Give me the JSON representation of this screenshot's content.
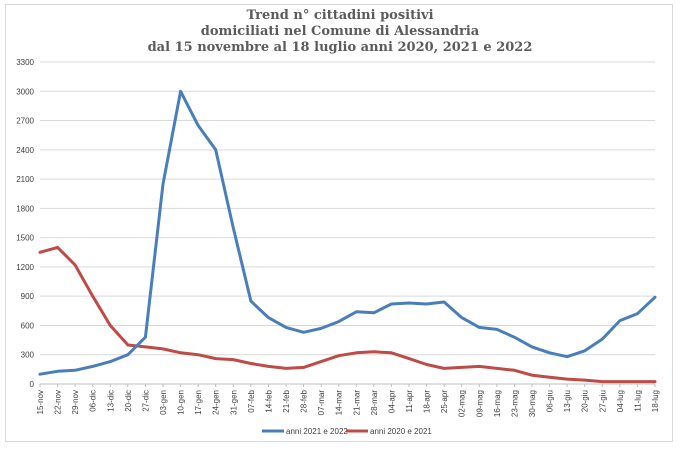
{
  "chart_data": {
    "type": "line",
    "title_lines": [
      "Trend n° cittadini positivi",
      "domiciliati nel Comune di Alessandria",
      "dal 15 novembre al 18 luglio anni 2020, 2021 e 2022"
    ],
    "xlabel": "",
    "ylabel": "",
    "ylim": [
      0,
      3300
    ],
    "yticks": [
      0,
      300,
      600,
      900,
      1200,
      1500,
      1800,
      2100,
      2400,
      2700,
      3000,
      3300
    ],
    "grid": true,
    "legend_position": "bottom",
    "categories": [
      "15-nov",
      "22-nov",
      "29-nov",
      "06-dic",
      "13-dic",
      "20-dic",
      "27-dic",
      "03-gen",
      "10-gen",
      "17-gen",
      "24-gen",
      "31-gen",
      "07-feb",
      "14-feb",
      "21-feb",
      "28-feb",
      "07-mar",
      "14-mar",
      "21-mar",
      "28-mar",
      "04-apr",
      "11-apr",
      "18-apr",
      "25-apr",
      "02-mag",
      "09-mag",
      "16-mag",
      "23-mag",
      "30-mag",
      "06-giu",
      "13-giu",
      "20-giu",
      "27-giu",
      "04-lug",
      "11-lug",
      "18-lug"
    ],
    "series": [
      {
        "name": "anni 2021 e 2022",
        "color": "#4a7ebb",
        "values": [
          100,
          130,
          140,
          180,
          230,
          300,
          480,
          2050,
          3000,
          2650,
          2400,
          1600,
          850,
          680,
          580,
          530,
          570,
          640,
          740,
          730,
          820,
          830,
          820,
          840,
          680,
          580,
          560,
          480,
          380,
          320,
          280,
          340,
          460,
          650,
          720,
          890
        ]
      },
      {
        "name": "anni 2020 e 2021",
        "color": "#be4b48",
        "values": [
          1350,
          1400,
          1220,
          900,
          600,
          400,
          380,
          360,
          320,
          300,
          260,
          250,
          210,
          180,
          160,
          170,
          230,
          290,
          320,
          330,
          320,
          260,
          200,
          160,
          170,
          180,
          160,
          140,
          90,
          70,
          50,
          40,
          25,
          25,
          25,
          25
        ]
      }
    ]
  }
}
